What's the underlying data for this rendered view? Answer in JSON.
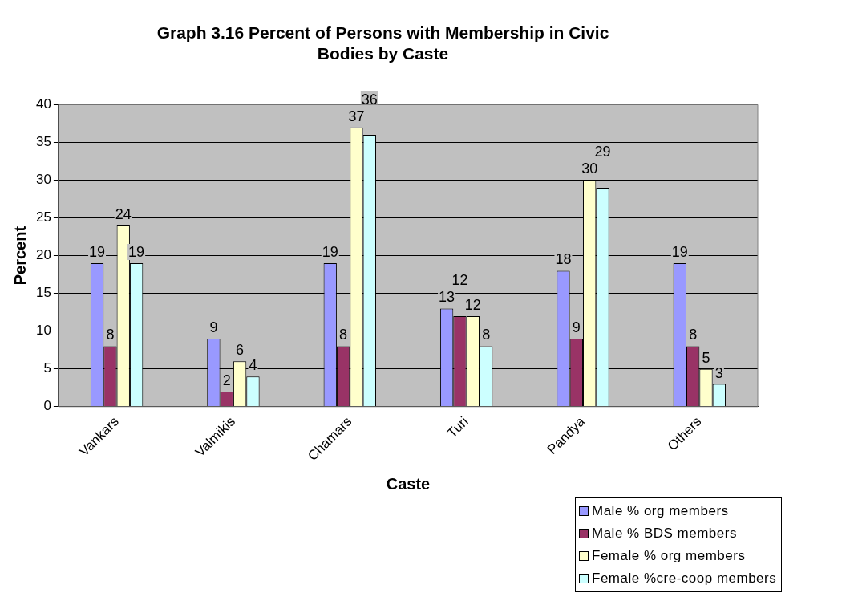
{
  "chart_data": {
    "type": "bar",
    "title": "Graph 3.16 Percent of Persons with Membership in Civic Bodies by Caste",
    "xlabel": "Caste",
    "ylabel": "Percent",
    "categories": [
      "Vankars",
      "Valmikis",
      "Chamars",
      "Turi",
      "Pandya",
      "Others"
    ],
    "series": [
      {
        "name": "Male % org members",
        "color": "#9999ff",
        "values": [
          19,
          9,
          19,
          13,
          18,
          19
        ]
      },
      {
        "name": "Male % BDS members",
        "color": "#993366",
        "values": [
          8,
          2,
          8,
          12,
          9,
          8
        ]
      },
      {
        "name": "Female % org members",
        "color": "#ffffcc",
        "values": [
          24,
          6,
          37,
          12,
          30,
          5
        ]
      },
      {
        "name": "Female %cre-coop members",
        "color": "#ccffff",
        "values": [
          19,
          4,
          36,
          8,
          29,
          3
        ]
      }
    ],
    "ylim": [
      0,
      40
    ],
    "yticks": [
      0,
      5,
      10,
      15,
      20,
      25,
      30,
      35,
      40
    ],
    "grid": "y",
    "legend": "bottom right",
    "data_labels": true
  }
}
